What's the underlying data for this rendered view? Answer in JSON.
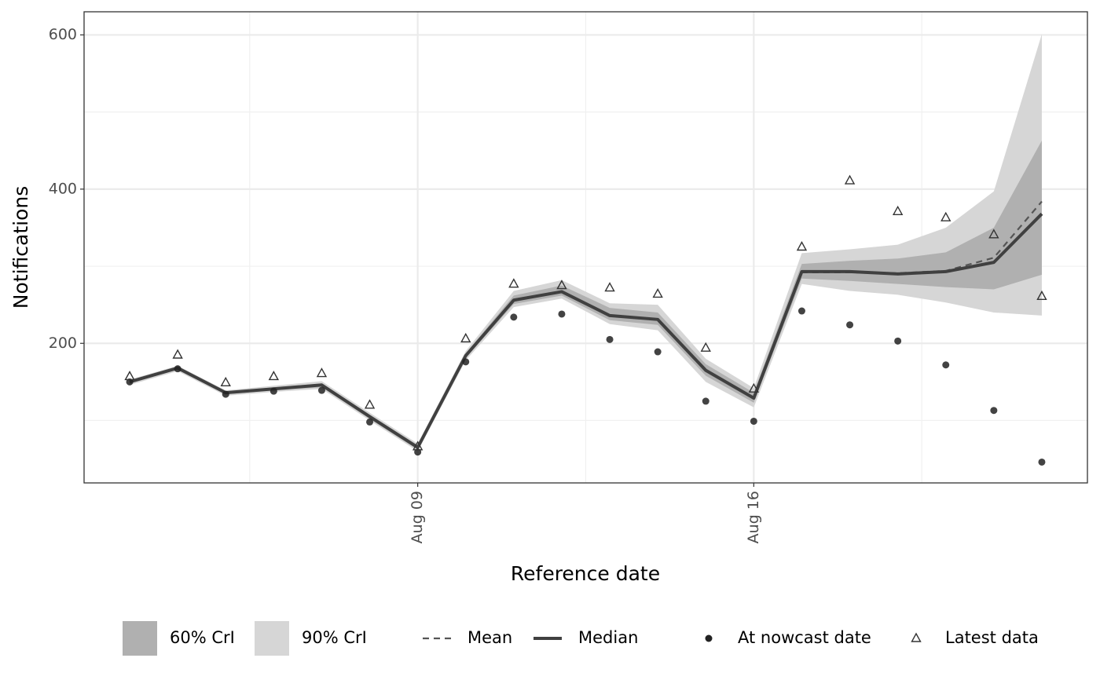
{
  "chart_data": {
    "type": "line",
    "x_label": "Reference date",
    "y_label": "Notifications",
    "categories": [
      "Aug 03",
      "Aug 04",
      "Aug 05",
      "Aug 06",
      "Aug 07",
      "Aug 08",
      "Aug 09",
      "Aug 10",
      "Aug 11",
      "Aug 12",
      "Aug 13",
      "Aug 14",
      "Aug 15",
      "Aug 16",
      "Aug 17",
      "Aug 18",
      "Aug 19",
      "Aug 20",
      "Aug 21",
      "Aug 22"
    ],
    "xticks": [
      "Aug 09",
      "Aug 16"
    ],
    "ylim": [
      19,
      630
    ],
    "yticks": [
      200,
      400,
      600
    ],
    "yticks_minor": [
      100,
      300,
      500
    ],
    "grid": true,
    "bands": [
      {
        "name": "60% CrI",
        "color": "#b0b0b0",
        "lower": [
          148,
          166,
          134,
          139,
          143,
          102,
          62,
          181,
          251,
          262,
          230,
          224,
          158,
          123,
          284,
          281,
          277,
          273,
          270,
          289
        ],
        "upper": [
          152,
          170,
          137,
          143,
          148,
          107,
          68,
          187,
          262,
          275,
          246,
          240,
          173,
          136,
          303,
          307,
          310,
          318,
          350,
          463
        ]
      },
      {
        "name": "90% CrI",
        "color": "#d6d6d6",
        "lower": [
          146,
          164,
          132,
          137,
          141,
          100,
          60,
          178,
          247,
          258,
          225,
          217,
          150,
          117,
          277,
          268,
          263,
          253,
          240,
          236
        ],
        "upper": [
          153,
          171,
          139,
          145,
          151,
          110,
          70,
          190,
          268,
          282,
          252,
          250,
          180,
          142,
          317,
          322,
          328,
          350,
          397,
          601
        ]
      }
    ],
    "series": [
      {
        "name": "Mean",
        "color": "#555555",
        "style": "dashed",
        "values": [
          150,
          168,
          136,
          141,
          146,
          105,
          65,
          184,
          256,
          267,
          236,
          231,
          165,
          129,
          292,
          292,
          291,
          294,
          311,
          384
        ]
      },
      {
        "name": "Median",
        "color": "#404040",
        "style": "solid",
        "values": [
          150,
          168,
          136,
          141,
          146,
          105,
          65,
          184,
          256,
          267,
          236,
          231,
          165,
          129,
          293,
          293,
          290,
          293,
          305,
          368
        ]
      },
      {
        "name": "At nowcast date",
        "color": "#222222",
        "marker": "dot",
        "values": [
          150,
          167,
          134,
          138,
          139,
          98,
          59,
          176,
          234,
          238,
          205,
          189,
          125,
          99,
          242,
          224,
          203,
          172,
          113,
          46
        ]
      },
      {
        "name": "Latest data",
        "color": "#333333",
        "marker": "triangle",
        "values": [
          157,
          185,
          149,
          157,
          161,
          120,
          66,
          206,
          277,
          275,
          272,
          264,
          194,
          141,
          325,
          411,
          371,
          363,
          341,
          261
        ]
      }
    ]
  }
}
